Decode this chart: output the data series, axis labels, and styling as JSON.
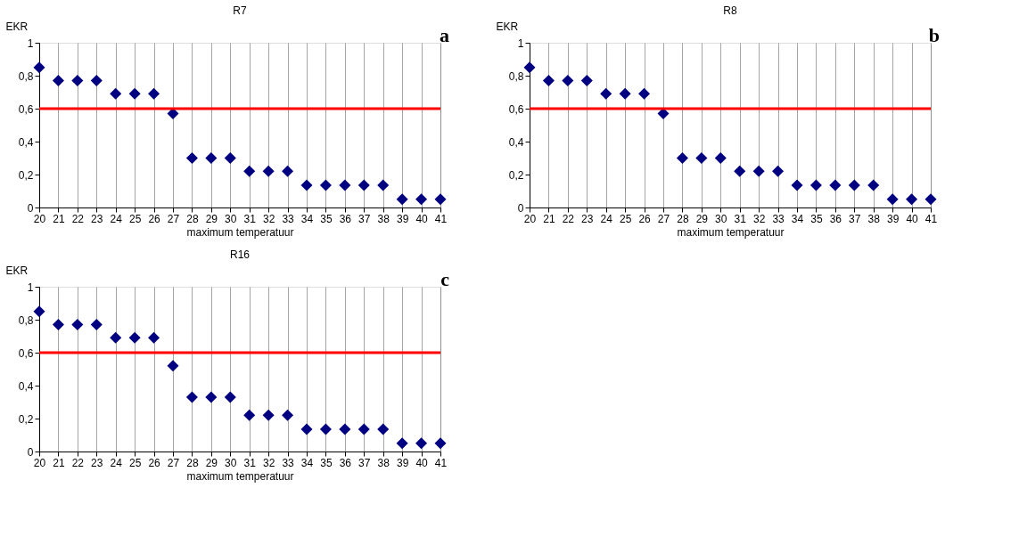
{
  "chart_data": [
    {
      "type": "scatter",
      "title": "R7",
      "ylabel": "EKR",
      "xlabel": "maximum temperatuur",
      "annotations": [
        "a"
      ],
      "categories": [
        "20",
        "21",
        "22",
        "23",
        "24",
        "25",
        "26",
        "27",
        "28",
        "29",
        "30",
        "31",
        "32",
        "33",
        "34",
        "35",
        "36",
        "37",
        "38",
        "39",
        "40",
        "41"
      ],
      "series": [
        {
          "color": "#000080",
          "values": [
            0.85,
            0.77,
            0.77,
            0.77,
            0.69,
            0.69,
            0.69,
            0.57,
            0.3,
            0.3,
            0.3,
            0.22,
            0.22,
            0.22,
            0.135,
            0.135,
            0.135,
            0.135,
            0.135,
            0.05,
            0.05,
            0.05
          ]
        }
      ],
      "ylim": [
        0,
        1
      ],
      "yticks": [
        0,
        {
          "value": 0.2,
          "label": "0,2"
        },
        {
          "value": 0.4,
          "label": "0,4"
        },
        {
          "value": 0.6,
          "label": "0,6"
        },
        {
          "value": 0.8,
          "label": "0,8"
        },
        1
      ],
      "ref_lines": [
        {
          "axis": "y",
          "value": 0.6,
          "color": "#ff0000"
        }
      ],
      "grid": "x",
      "marker": "diamond"
    },
    {
      "type": "scatter",
      "title": "R8",
      "ylabel": "EKR",
      "xlabel": "maximum temperatuur",
      "annotations": [
        "b"
      ],
      "categories": [
        "20",
        "21",
        "22",
        "23",
        "24",
        "25",
        "26",
        "27",
        "28",
        "29",
        "30",
        "31",
        "32",
        "33",
        "34",
        "35",
        "36",
        "37",
        "38",
        "39",
        "40",
        "41"
      ],
      "series": [
        {
          "color": "#000080",
          "values": [
            0.85,
            0.77,
            0.77,
            0.77,
            0.69,
            0.69,
            0.69,
            0.57,
            0.3,
            0.3,
            0.3,
            0.22,
            0.22,
            0.22,
            0.135,
            0.135,
            0.135,
            0.135,
            0.135,
            0.05,
            0.05,
            0.05
          ]
        }
      ],
      "ylim": [
        0,
        1
      ],
      "yticks": [
        0,
        {
          "value": 0.2,
          "label": "0,2"
        },
        {
          "value": 0.4,
          "label": "0,4"
        },
        {
          "value": 0.6,
          "label": "0,6"
        },
        {
          "value": 0.8,
          "label": "0,8"
        },
        1
      ],
      "ref_lines": [
        {
          "axis": "y",
          "value": 0.6,
          "color": "#ff0000"
        }
      ],
      "grid": "x",
      "marker": "diamond"
    },
    {
      "type": "scatter",
      "title": "R16",
      "ylabel": "EKR",
      "xlabel": "maximum temperatuur",
      "annotations": [
        "c"
      ],
      "categories": [
        "20",
        "21",
        "22",
        "23",
        "24",
        "25",
        "26",
        "27",
        "28",
        "29",
        "30",
        "31",
        "32",
        "33",
        "34",
        "35",
        "36",
        "37",
        "38",
        "39",
        "40",
        "41"
      ],
      "series": [
        {
          "color": "#000080",
          "values": [
            0.85,
            0.77,
            0.77,
            0.77,
            0.69,
            0.69,
            0.69,
            0.52,
            0.33,
            0.33,
            0.33,
            0.22,
            0.22,
            0.22,
            0.135,
            0.135,
            0.135,
            0.135,
            0.135,
            0.05,
            0.05,
            0.05
          ]
        }
      ],
      "ylim": [
        0,
        1
      ],
      "yticks": [
        0,
        {
          "value": 0.2,
          "label": "0,2"
        },
        {
          "value": 0.4,
          "label": "0,4"
        },
        {
          "value": 0.6,
          "label": "0,6"
        },
        {
          "value": 0.8,
          "label": "0,8"
        },
        1
      ],
      "ref_lines": [
        {
          "axis": "y",
          "value": 0.6,
          "color": "#ff0000"
        }
      ],
      "grid": "x",
      "marker": "diamond"
    }
  ]
}
